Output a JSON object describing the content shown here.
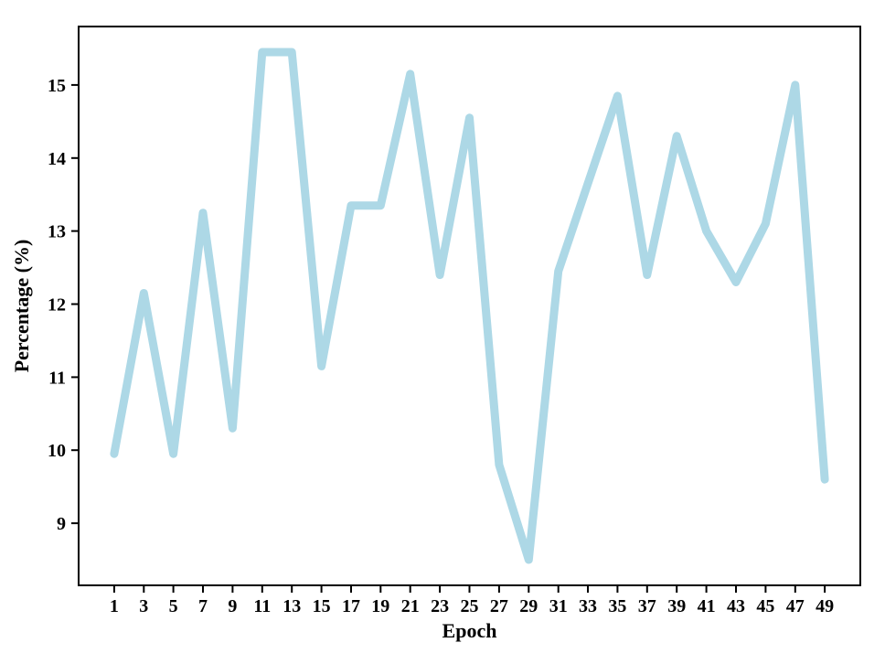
{
  "chart_data": {
    "type": "line",
    "title": "",
    "xlabel": "Epoch",
    "ylabel": "Percentage (%)",
    "x": [
      1,
      3,
      5,
      7,
      9,
      11,
      13,
      15,
      17,
      19,
      21,
      23,
      25,
      27,
      29,
      31,
      33,
      35,
      37,
      39,
      41,
      43,
      45,
      47,
      49
    ],
    "y": [
      9.95,
      12.15,
      9.95,
      13.25,
      10.3,
      15.45,
      15.45,
      11.15,
      13.35,
      13.35,
      15.15,
      12.4,
      14.55,
      9.8,
      8.5,
      12.45,
      13.65,
      14.85,
      12.4,
      14.3,
      13.0,
      12.3,
      13.1,
      15.0,
      9.6
    ],
    "xticks": [
      1,
      3,
      5,
      7,
      9,
      11,
      13,
      15,
      17,
      19,
      21,
      23,
      25,
      27,
      29,
      31,
      33,
      35,
      37,
      39,
      41,
      43,
      45,
      47,
      49
    ],
    "yticks": [
      9,
      10,
      11,
      12,
      13,
      14,
      15
    ],
    "xlim": [
      -1.4,
      51.4
    ],
    "ylim": [
      8.15,
      15.8
    ],
    "grid": false,
    "legend_position": "none",
    "line_color": "#ADD8E6",
    "line_width": 9,
    "axis_color": "#000000",
    "background_color": "#ffffff"
  }
}
